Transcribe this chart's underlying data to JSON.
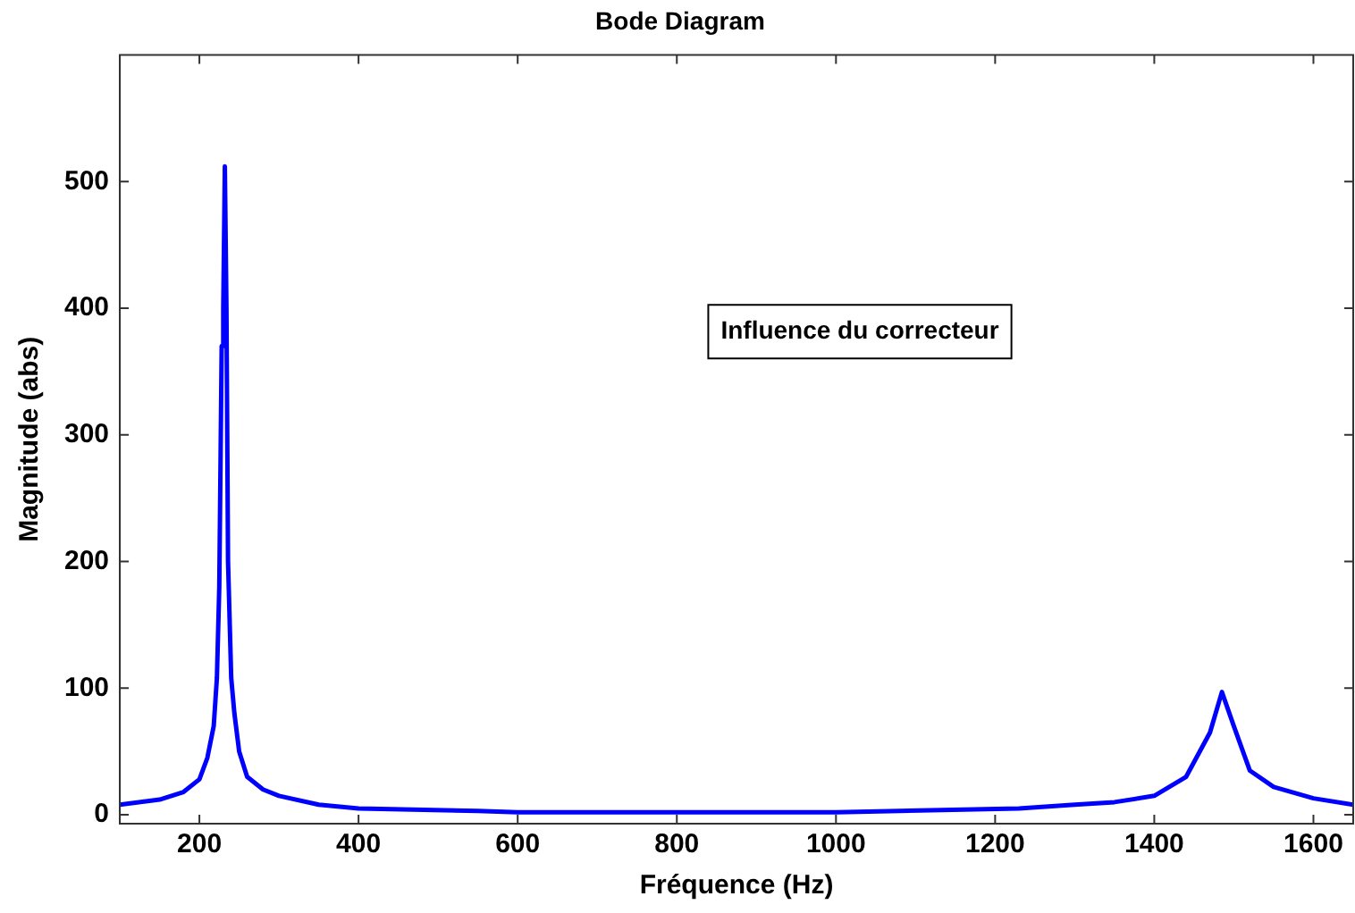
{
  "chart_data": {
    "type": "line",
    "title": "Bode Diagram",
    "xlabel": "Fréquence (Hz)",
    "ylabel": "Magnitude (abs)",
    "annotations": [
      "Influence du correcteur"
    ],
    "x": [
      100,
      150,
      180,
      200,
      210,
      218,
      222,
      225,
      228,
      230,
      232,
      234,
      236,
      240,
      244,
      250,
      260,
      280,
      300,
      350,
      400,
      550,
      600,
      800,
      1000,
      1080,
      1230,
      1300,
      1350,
      1400,
      1440,
      1470,
      1485,
      1500,
      1520,
      1550,
      1600,
      1650
    ],
    "series": [
      {
        "color": "#0000ff",
        "values": [
          8,
          12,
          18,
          28,
          45,
          70,
          108,
          180,
          370,
          400,
          512,
          400,
          200,
          108,
          80,
          50,
          30,
          20,
          15,
          8,
          5,
          3,
          2,
          2,
          2,
          3,
          5,
          8,
          10,
          15,
          30,
          65,
          97,
          70,
          35,
          22,
          13,
          8
        ]
      }
    ],
    "xlim": [
      100,
      1650
    ],
    "xticks": [
      200,
      400,
      600,
      800,
      1000,
      1200,
      1400,
      1600
    ],
    "ylim": [
      -7,
      600
    ],
    "yticks": [
      0,
      100,
      200,
      300,
      400,
      500
    ],
    "grid": false,
    "legend": false,
    "marker": "none",
    "line_style": "solid"
  }
}
